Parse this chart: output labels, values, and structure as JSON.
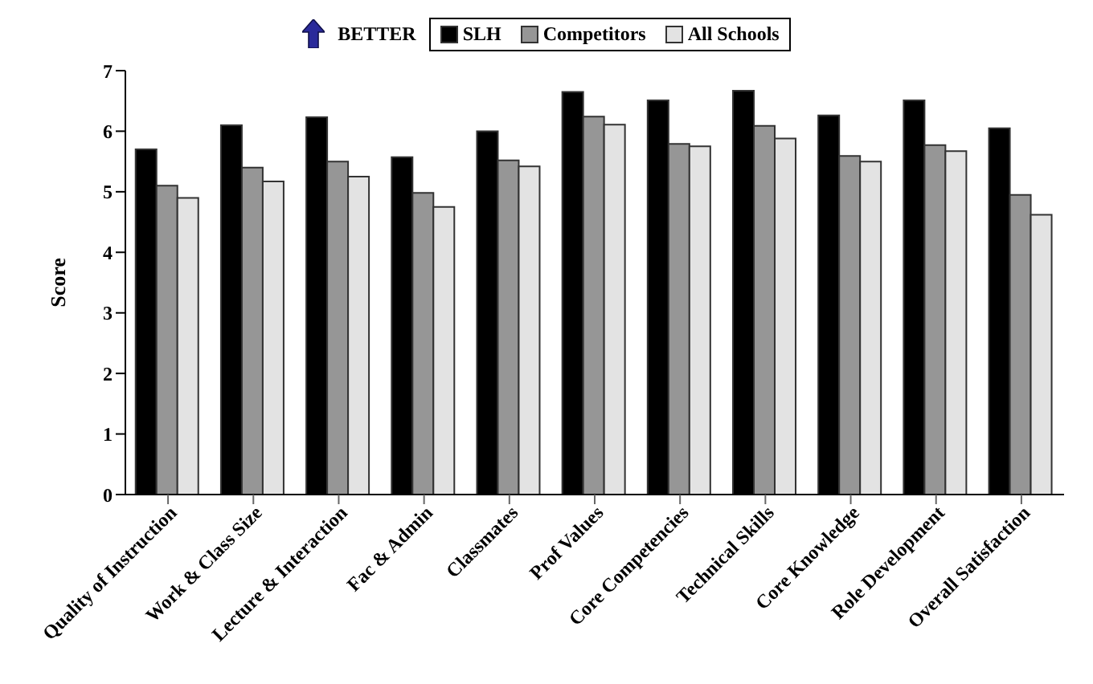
{
  "chart_data": {
    "type": "bar",
    "ylabel": "Score",
    "annotations": [
      "BETTER"
    ],
    "categories": [
      "Quality of Instruction",
      "Work & Class Size",
      "Lecture & Interaction",
      "Fac & Admin",
      "Classmates",
      "Prof Values",
      "Core Competencies",
      "Technical Skills",
      "Core Knowledge",
      "Role Development",
      "Overall Satisfaction"
    ],
    "series": [
      {
        "name": "SLH",
        "color": "#000000",
        "values": [
          5.7,
          6.1,
          6.23,
          5.57,
          6.0,
          6.65,
          6.51,
          6.67,
          6.26,
          6.51,
          6.05
        ]
      },
      {
        "name": "Competitors",
        "color": "#969696",
        "values": [
          5.1,
          5.4,
          5.5,
          4.98,
          5.52,
          6.24,
          5.79,
          6.09,
          5.59,
          5.77,
          4.95
        ]
      },
      {
        "name": "All Schools",
        "color": "#e3e3e3",
        "values": [
          4.9,
          5.17,
          5.25,
          4.75,
          5.42,
          6.11,
          5.75,
          5.88,
          5.5,
          5.67,
          4.62
        ]
      }
    ],
    "ylim": [
      0,
      7
    ],
    "yticks": [
      0,
      1,
      2,
      3,
      4,
      5,
      6,
      7
    ],
    "legend": "top"
  }
}
